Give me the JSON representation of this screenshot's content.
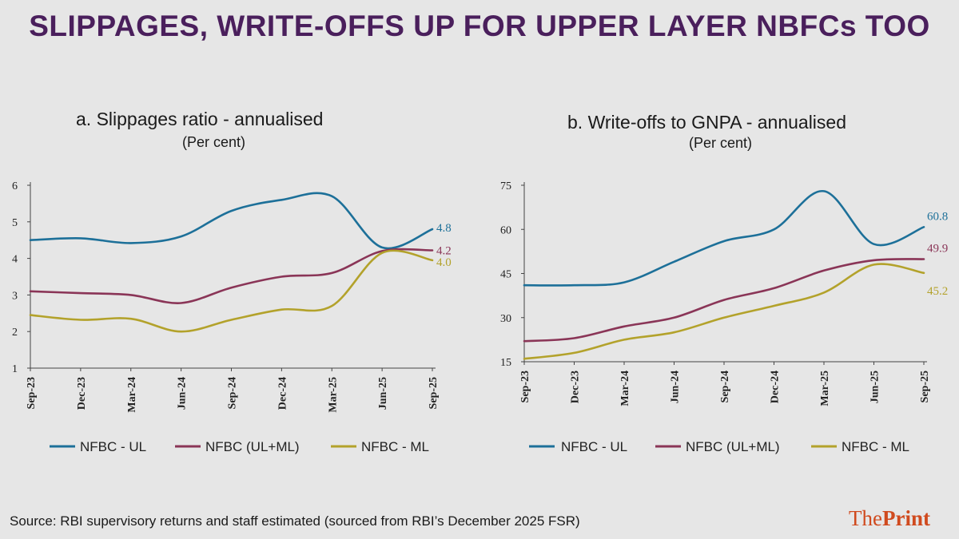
{
  "headline": "SLIPPAGES, WRITE-OFFS UP FOR UPPER LAYER NBFCs TOO",
  "source": "Source: RBI supervisory returns and staff estimated (sourced from RBI’s December 2025 FSR)",
  "brand": {
    "part1": "The",
    "part2": "Print"
  },
  "chart_data": [
    {
      "type": "line",
      "title": "a. Slippages ratio - annualised",
      "subtitle": "(Per cent)",
      "categories": [
        "Sep-23",
        "Dec-23",
        "Mar-24",
        "Jun-24",
        "Sep-24",
        "Dec-24",
        "Mar-25",
        "Jun-25",
        "Sep-25"
      ],
      "ylim": [
        1,
        6
      ],
      "yticks": [
        1,
        2,
        3,
        4,
        5,
        6
      ],
      "legend_position": "bottom",
      "grid": false,
      "series": [
        {
          "name": "NFBC - UL",
          "color": "#1d7099",
          "end_label": "4.8",
          "values": [
            4.5,
            4.55,
            4.42,
            4.6,
            5.3,
            5.6,
            5.7,
            4.3,
            4.8
          ]
        },
        {
          "name": "NFBC (UL+ML)",
          "color": "#8a3557",
          "end_label": "4.2",
          "values": [
            3.1,
            3.05,
            3.0,
            2.78,
            3.2,
            3.5,
            3.6,
            4.2,
            4.22
          ]
        },
        {
          "name": "NFBC - ML",
          "color": "#b3a22b",
          "end_label": "4.0",
          "values": [
            2.45,
            2.32,
            2.35,
            2.0,
            2.32,
            2.6,
            2.7,
            4.15,
            3.95
          ]
        }
      ]
    },
    {
      "type": "line",
      "title": "b. Write-offs to GNPA - annualised",
      "subtitle": "(Per cent)",
      "categories": [
        "Sep-23",
        "Dec-23",
        "Mar-24",
        "Jun-24",
        "Sep-24",
        "Dec-24",
        "Mar-25",
        "Jun-25",
        "Sep-25"
      ],
      "ylim": [
        15,
        75
      ],
      "yticks": [
        15,
        30,
        45,
        60,
        75
      ],
      "legend_position": "bottom",
      "grid": false,
      "series": [
        {
          "name": "NFBC - UL",
          "color": "#1d7099",
          "end_label": "60.8",
          "values": [
            41,
            41,
            42,
            49,
            56,
            60,
            73,
            55,
            60.8
          ]
        },
        {
          "name": "NFBC (UL+ML)",
          "color": "#8a3557",
          "end_label": "49.9",
          "values": [
            22,
            23,
            27,
            30,
            36,
            40,
            46,
            49.5,
            49.9
          ]
        },
        {
          "name": "NFBC - ML",
          "color": "#b3a22b",
          "end_label": "45.2",
          "values": [
            16,
            18,
            22.5,
            25,
            30,
            34,
            38.5,
            48,
            45.2
          ]
        }
      ]
    }
  ]
}
